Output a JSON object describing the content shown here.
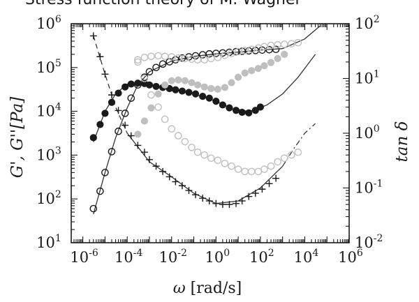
{
  "chart_data": {
    "type": "scatter",
    "title": "Stress function theory of M. Wagner",
    "xlabel_symbol": "ω",
    "xlabel_unit": "[rad/s]",
    "ylabel_left": "G', G''[Pa]",
    "ylabel_right": "tan δ",
    "x_scale": "log",
    "y_scale": "log",
    "xlim": [
      3e-07,
      1000000.0
    ],
    "ylim_left": [
      10,
      1000000
    ],
    "ylim_right": [
      0.01,
      100
    ],
    "x_ticks": [
      {
        "base": "10",
        "exp": "-6"
      },
      {
        "base": "10",
        "exp": "-4"
      },
      {
        "base": "10",
        "exp": "-2"
      },
      {
        "base": "10",
        "exp": "0"
      },
      {
        "base": "10",
        "exp": "2"
      },
      {
        "base": "10",
        "exp": "4"
      },
      {
        "base": "10",
        "exp": "6"
      }
    ],
    "y_ticks_left": [
      {
        "base": "10",
        "exp": "1"
      },
      {
        "base": "10",
        "exp": "2"
      },
      {
        "base": "10",
        "exp": "3"
      },
      {
        "base": "10",
        "exp": "4"
      },
      {
        "base": "10",
        "exp": "5"
      },
      {
        "base": "10",
        "exp": "6"
      }
    ],
    "y_ticks_right": [
      {
        "base": "10",
        "exp": "-2"
      },
      {
        "base": "10",
        "exp": "-1"
      },
      {
        "base": "10",
        "exp": "0"
      },
      {
        "base": "10",
        "exp": "1"
      },
      {
        "base": "10",
        "exp": "2"
      }
    ],
    "grid": false,
    "legend": "none",
    "series": [
      {
        "axis": "left",
        "marker": "open-circle",
        "color": "#1a1a1a",
        "x": [
          3e-06,
          6e-06,
          1e-05,
          2e-05,
          4e-05,
          8e-05,
          0.00015,
          0.0003,
          0.0006,
          0.001,
          0.002,
          0.004,
          0.008,
          0.015,
          0.03,
          0.06,
          0.12,
          0.25,
          0.5,
          1,
          2,
          4,
          8,
          15,
          30,
          60,
          120,
          250,
          500
        ],
        "y": [
          60,
          150,
          400,
          1200,
          3500,
          9000,
          20000,
          40000,
          60000,
          80000,
          100000,
          120000,
          135000,
          150000,
          165000,
          175000,
          185000,
          195000,
          205000,
          210000,
          215000,
          222000,
          230000,
          235000,
          240000,
          245000,
          250000,
          255000,
          260000
        ]
      },
      {
        "axis": "left",
        "marker": "filled-circle",
        "color": "#1a1a1a",
        "x": [
          3e-06,
          6e-06,
          1e-05,
          2e-05,
          4e-05,
          8e-05,
          0.00015,
          0.0003,
          0.0006,
          0.001,
          0.002,
          0.004,
          0.008,
          0.015,
          0.03,
          0.06,
          0.12,
          0.25,
          0.5,
          1,
          2,
          4,
          8,
          15,
          30,
          60,
          100
        ],
        "y": [
          2500,
          5000,
          9000,
          16000,
          26000,
          36000,
          42000,
          44000,
          43000,
          40000,
          37000,
          35000,
          33000,
          31000,
          29000,
          27000,
          25000,
          22000,
          20000,
          17000,
          14000,
          12000,
          10500,
          9500,
          9200,
          10500,
          12500
        ]
      },
      {
        "axis": "right",
        "marker": "plus",
        "color": "#1a1a1a",
        "x": [
          3e-06,
          6e-06,
          1e-05,
          2e-05,
          4e-05,
          8e-05,
          0.00015,
          0.0003,
          0.0006,
          0.001,
          0.002,
          0.004,
          0.008,
          0.015,
          0.03,
          0.06,
          0.12,
          0.25,
          0.5,
          1,
          2,
          4,
          8,
          15,
          30,
          60,
          120,
          250,
          500
        ],
        "y": [
          60,
          25,
          12,
          5,
          2.6,
          1.4,
          0.9,
          0.6,
          0.45,
          0.33,
          0.25,
          0.2,
          0.16,
          0.13,
          0.11,
          0.09,
          0.075,
          0.065,
          0.058,
          0.052,
          0.05,
          0.05,
          0.052,
          0.058,
          0.07,
          0.08,
          0.095,
          0.12,
          0.15
        ]
      },
      {
        "axis": "left",
        "marker": "open-circle",
        "color": "#bfbfbf",
        "x": [
          0.0003,
          0.0006,
          0.0012,
          0.0025,
          0.005,
          0.01,
          0.02,
          0.04,
          0.08,
          0.15,
          0.3,
          0.6,
          1.2,
          2.5,
          5,
          10,
          20,
          40,
          80,
          150,
          300,
          600,
          1200,
          2500,
          5000
        ],
        "y": [
          150000,
          170000,
          180000,
          185000,
          180000,
          175000,
          165000,
          160000,
          155000,
          150000,
          150000,
          160000,
          170000,
          190000,
          210000,
          230000,
          245000,
          260000,
          280000,
          300000,
          320000,
          330000,
          340000,
          350000,
          370000
        ]
      },
      {
        "axis": "left",
        "marker": "filled-circle",
        "color": "#bfbfbf",
        "x": [
          0.0003,
          0.0006,
          0.0012,
          0.0025,
          0.005,
          0.01,
          0.02,
          0.04,
          0.08,
          0.15,
          0.3,
          0.6,
          1.2,
          2.5,
          5,
          10,
          20,
          40,
          80,
          150,
          300,
          600,
          1200
        ],
        "y": [
          3000,
          6000,
          12000,
          25000,
          40000,
          50000,
          52000,
          50000,
          45000,
          40000,
          36000,
          33000,
          32000,
          35000,
          45000,
          60000,
          75000,
          85000,
          95000,
          110000,
          130000,
          160000,
          200000
        ]
      },
      {
        "axis": "right",
        "marker": "open-circle",
        "color": "#bfbfbf",
        "x": [
          0.0003,
          0.0006,
          0.0012,
          0.0025,
          0.005,
          0.01,
          0.02,
          0.04,
          0.08,
          0.15,
          0.3,
          0.6,
          1.2,
          2.5,
          5,
          10,
          20,
          40,
          80,
          150,
          300,
          600,
          1200,
          2500,
          5000
        ],
        "y": [
          20,
          10,
          5,
          3,
          1.8,
          1.2,
          0.9,
          0.7,
          0.55,
          0.45,
          0.4,
          0.35,
          0.32,
          0.28,
          0.25,
          0.22,
          0.2,
          0.2,
          0.2,
          0.22,
          0.25,
          0.3,
          0.35,
          0.4,
          0.45
        ]
      }
    ],
    "lines": [
      {
        "name": "",
        "axis": "left",
        "style": "solid",
        "x": [
          3e-06,
          1e-05,
          3e-05,
          0.0001,
          0.0003,
          0.001,
          0.01,
          0.1,
          1,
          10,
          100,
          1000,
          10000,
          50000
        ],
        "y": [
          45,
          400,
          2500,
          12000,
          40000,
          80000,
          140000,
          180000,
          205000,
          225000,
          250000,
          270000,
          450000,
          900000
        ]
      },
      {
        "name": "",
        "axis": "left",
        "style": "solid",
        "x": [
          3e-06,
          1e-05,
          3e-05,
          0.0001,
          0.0003,
          0.001,
          0.01,
          0.1,
          1,
          10,
          50,
          200,
          1000,
          5000,
          30000
        ],
        "y": [
          2000,
          10000,
          25000,
          42000,
          44000,
          40000,
          32000,
          25000,
          17000,
          10000,
          10500,
          14000,
          25000,
          60000,
          200000
        ]
      },
      {
        "name": "",
        "axis": "right",
        "style": "dashed",
        "x": [
          3e-06,
          1e-05,
          3e-05,
          0.0001
        ],
        "y": [
          60,
          12,
          3,
          1
        ]
      },
      {
        "name": "",
        "axis": "right",
        "style": "solid",
        "x": [
          0.0001,
          0.001,
          0.01,
          0.1,
          1,
          10,
          100,
          1000
        ],
        "y": [
          1,
          0.3,
          0.16,
          0.08,
          0.052,
          0.058,
          0.1,
          0.25
        ]
      },
      {
        "name": "",
        "axis": "right",
        "style": "dashdot",
        "x": [
          1000,
          3000,
          10000,
          30000
        ],
        "y": [
          0.25,
          0.5,
          1.0,
          1.5
        ]
      }
    ]
  }
}
